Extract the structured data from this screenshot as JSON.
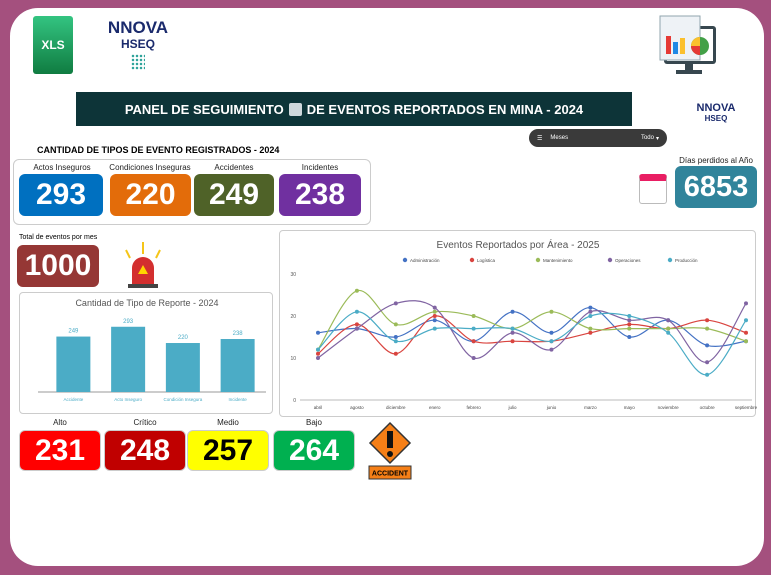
{
  "header": {
    "title": "PANEL DE SEGUIMIENTO",
    "title_suffix": "DE EVENTOS REPORTADOS EN MINA - 2024",
    "logo_text": "NNOVA",
    "logo_sub": "HSEQ",
    "xls_label": "XLS"
  },
  "filter": {
    "label": "Meses",
    "value": "Todo"
  },
  "types_section": {
    "title": "CANTIDAD DE TIPOS DE EVENTO REGISTRADOS - 2024",
    "items": [
      {
        "label": "Actos Inseguros",
        "value": "293",
        "color": "#0070c0"
      },
      {
        "label": "Condiciones Inseguras",
        "value": "220",
        "color": "#e36c0a"
      },
      {
        "label": "Accidentes",
        "value": "249",
        "color": "#4f6228"
      },
      {
        "label": "Incidentes",
        "value": "238",
        "color": "#7030a0"
      }
    ]
  },
  "lost_days": {
    "label": "Días perdidos al Año",
    "value": "6853",
    "color": "#31849b"
  },
  "total": {
    "label": "Total de eventos por mes",
    "value": "1000",
    "color": "#953735"
  },
  "severity": [
    {
      "label": "Alto",
      "value": "231",
      "color": "#ff0000",
      "text": "#fff"
    },
    {
      "label": "Crítico",
      "value": "248",
      "color": "#c00000",
      "text": "#fff"
    },
    {
      "label": "Medio",
      "value": "257",
      "color": "#ffff00",
      "text": "#000"
    },
    {
      "label": "Bajo",
      "value": "264",
      "color": "#00b050",
      "text": "#fff"
    }
  ],
  "accident_sign": "ACCIDENT",
  "chart_data": [
    {
      "type": "bar",
      "title": "Cantidad de Tipo de Reporte - 2024",
      "categories": [
        "Accidente",
        "Acto Inseguro",
        "Condición Insegura",
        "Incidente"
      ],
      "values": [
        249,
        293,
        220,
        238
      ],
      "ylim": [
        0,
        320
      ],
      "color": "#4bacc6"
    },
    {
      "type": "line",
      "title": "Eventos Reportados por Área - 2025",
      "categories": [
        "abril",
        "agosto",
        "diciembre",
        "enero",
        "febrero",
        "julio",
        "junio",
        "marzo",
        "mayo",
        "noviembre",
        "octubre",
        "septiembre"
      ],
      "ylim": [
        0,
        30
      ],
      "yticks": [
        0,
        10,
        20,
        30
      ],
      "legend": "top",
      "series": [
        {
          "name": "Administración",
          "color": "#4472c4",
          "values": [
            16,
            17,
            15,
            19,
            14,
            21,
            16,
            22,
            15,
            19,
            13,
            14
          ]
        },
        {
          "name": "Logística",
          "color": "#d9443f",
          "values": [
            11,
            18,
            11,
            20,
            14,
            14,
            14,
            16,
            18,
            17,
            19,
            16
          ]
        },
        {
          "name": "Mantenimiento",
          "color": "#9bbb59",
          "values": [
            12,
            26,
            18,
            21,
            20,
            17,
            21,
            17,
            17,
            17,
            17,
            14
          ]
        },
        {
          "name": "Operaciones",
          "color": "#8064a2",
          "values": [
            10,
            17,
            23,
            22,
            10,
            16,
            12,
            21,
            19,
            19,
            9,
            23
          ]
        },
        {
          "name": "Producción",
          "color": "#4bacc6",
          "values": [
            12,
            21,
            14,
            17,
            17,
            17,
            14,
            20,
            20,
            16,
            6,
            19
          ]
        }
      ]
    }
  ]
}
